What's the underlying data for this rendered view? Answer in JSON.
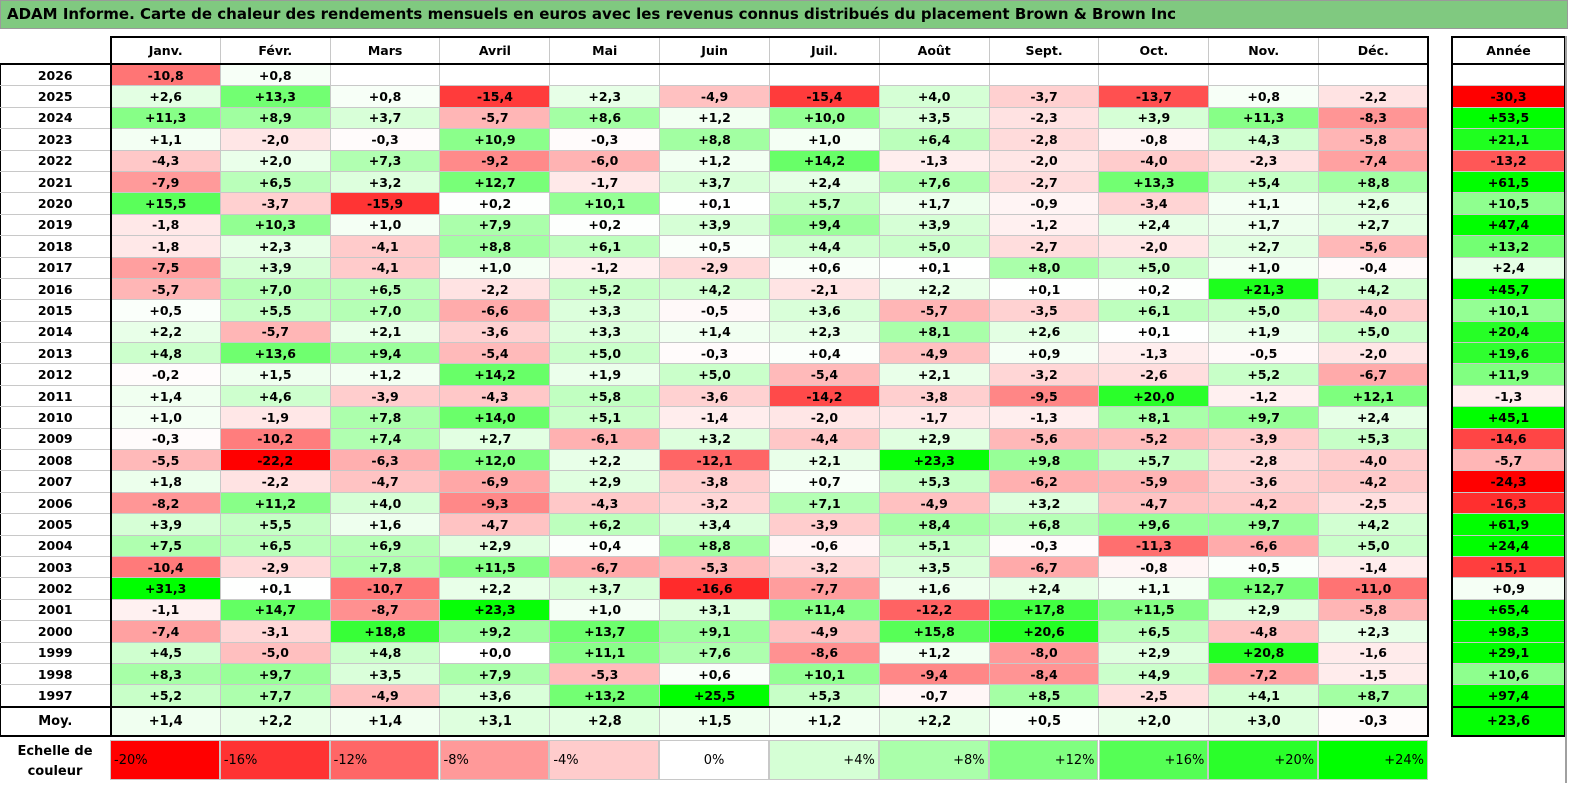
{
  "title": "ADAM Informe. Carte de chaleur des rendements mensuels en euros avec les revenus connus distribués du placement Brown & Brown Inc",
  "months": [
    "Janv.",
    "Févr.",
    "Mars",
    "Avril",
    "Mai",
    "Juin",
    "Juil.",
    "Août",
    "Sept.",
    "Oct.",
    "Nov.",
    "Déc."
  ],
  "annual_label": "Année",
  "rows": [
    {
      "year": "2026",
      "values": [
        "-10,8",
        "+0,8",
        null,
        null,
        null,
        null,
        null,
        null,
        null,
        null,
        null,
        null
      ],
      "annual": null
    },
    {
      "year": "2025",
      "values": [
        "+2,6",
        "+13,3",
        "+0,8",
        "-15,4",
        "+2,3",
        "-4,9",
        "-15,4",
        "+4,0",
        "-3,7",
        "-13,7",
        "+0,8",
        "-2,2"
      ],
      "annual": "-30,3"
    },
    {
      "year": "2024",
      "values": [
        "+11,3",
        "+8,9",
        "+3,7",
        "-5,7",
        "+8,6",
        "+1,2",
        "+10,0",
        "+3,5",
        "-2,3",
        "+3,9",
        "+11,3",
        "-8,3"
      ],
      "annual": "+53,5"
    },
    {
      "year": "2023",
      "values": [
        "+1,1",
        "-2,0",
        "-0,3",
        "+10,9",
        "-0,3",
        "+8,8",
        "+1,0",
        "+6,4",
        "-2,8",
        "-0,8",
        "+4,3",
        "-5,8"
      ],
      "annual": "+21,1"
    },
    {
      "year": "2022",
      "values": [
        "-4,3",
        "+2,0",
        "+7,3",
        "-9,2",
        "-6,0",
        "+1,2",
        "+14,2",
        "-1,3",
        "-2,0",
        "-4,0",
        "-2,3",
        "-7,4"
      ],
      "annual": "-13,2"
    },
    {
      "year": "2021",
      "values": [
        "-7,9",
        "+6,5",
        "+3,2",
        "+12,7",
        "-1,7",
        "+3,7",
        "+2,4",
        "+7,6",
        "-2,7",
        "+13,3",
        "+5,4",
        "+8,8"
      ],
      "annual": "+61,5"
    },
    {
      "year": "2020",
      "values": [
        "+15,5",
        "-3,7",
        "-15,9",
        "+0,2",
        "+10,1",
        "+0,1",
        "+5,7",
        "+1,7",
        "-0,9",
        "-3,4",
        "+1,1",
        "+2,6"
      ],
      "annual": "+10,5"
    },
    {
      "year": "2019",
      "values": [
        "-1,8",
        "+10,3",
        "+1,0",
        "+7,9",
        "+0,2",
        "+3,9",
        "+9,4",
        "+3,9",
        "-1,2",
        "+2,4",
        "+1,7",
        "+2,7"
      ],
      "annual": "+47,4"
    },
    {
      "year": "2018",
      "values": [
        "-1,8",
        "+2,3",
        "-4,1",
        "+8,8",
        "+6,1",
        "+0,5",
        "+4,4",
        "+5,0",
        "-2,7",
        "-2,0",
        "+2,7",
        "-5,6"
      ],
      "annual": "+13,2"
    },
    {
      "year": "2017",
      "values": [
        "-7,5",
        "+3,9",
        "-4,1",
        "+1,0",
        "-1,2",
        "-2,9",
        "+0,6",
        "+0,1",
        "+8,0",
        "+5,0",
        "+1,0",
        "-0,4"
      ],
      "annual": "+2,4"
    },
    {
      "year": "2016",
      "values": [
        "-5,7",
        "+7,0",
        "+6,5",
        "-2,2",
        "+5,2",
        "+4,2",
        "-2,1",
        "+2,2",
        "+0,1",
        "+0,2",
        "+21,3",
        "+4,2"
      ],
      "annual": "+45,7"
    },
    {
      "year": "2015",
      "values": [
        "+0,5",
        "+5,5",
        "+7,0",
        "-6,6",
        "+3,3",
        "-0,5",
        "+3,6",
        "-5,7",
        "-3,5",
        "+6,1",
        "+5,0",
        "-4,0"
      ],
      "annual": "+10,1"
    },
    {
      "year": "2014",
      "values": [
        "+2,2",
        "-5,7",
        "+2,1",
        "-3,6",
        "+3,3",
        "+1,4",
        "+2,3",
        "+8,1",
        "+2,6",
        "+0,1",
        "+1,9",
        "+5,0"
      ],
      "annual": "+20,4"
    },
    {
      "year": "2013",
      "values": [
        "+4,8",
        "+13,6",
        "+9,4",
        "-5,4",
        "+5,0",
        "-0,3",
        "+0,4",
        "-4,9",
        "+0,9",
        "-1,3",
        "-0,5",
        "-2,0"
      ],
      "annual": "+19,6"
    },
    {
      "year": "2012",
      "values": [
        "-0,2",
        "+1,5",
        "+1,2",
        "+14,2",
        "+1,9",
        "+5,0",
        "-5,4",
        "+2,1",
        "-3,2",
        "-2,6",
        "+5,2",
        "-6,7"
      ],
      "annual": "+11,9"
    },
    {
      "year": "2011",
      "values": [
        "+1,4",
        "+4,6",
        "-3,9",
        "-4,3",
        "+5,8",
        "-3,6",
        "-14,2",
        "-3,8",
        "-9,5",
        "+20,0",
        "-1,2",
        "+12,1"
      ],
      "annual": "-1,3"
    },
    {
      "year": "2010",
      "values": [
        "+1,0",
        "-1,9",
        "+7,8",
        "+14,0",
        "+5,1",
        "-1,4",
        "-2,0",
        "-1,7",
        "-1,3",
        "+8,1",
        "+9,7",
        "+2,4"
      ],
      "annual": "+45,1"
    },
    {
      "year": "2009",
      "values": [
        "-0,3",
        "-10,2",
        "+7,4",
        "+2,7",
        "-6,1",
        "+3,2",
        "-4,4",
        "+2,9",
        "-5,6",
        "-5,2",
        "-3,9",
        "+5,3"
      ],
      "annual": "-14,6"
    },
    {
      "year": "2008",
      "values": [
        "-5,5",
        "-22,2",
        "-6,3",
        "+12,0",
        "+2,2",
        "-12,1",
        "+2,1",
        "+23,3",
        "+9,8",
        "+5,7",
        "-2,8",
        "-4,0"
      ],
      "annual": "-5,7"
    },
    {
      "year": "2007",
      "values": [
        "+1,8",
        "-2,2",
        "-4,7",
        "-6,9",
        "+2,9",
        "-3,8",
        "+0,7",
        "+5,3",
        "-6,2",
        "-5,9",
        "-3,6",
        "-4,2"
      ],
      "annual": "-24,3"
    },
    {
      "year": "2006",
      "values": [
        "-8,2",
        "+11,2",
        "+4,0",
        "-9,3",
        "-4,3",
        "-3,2",
        "+7,1",
        "-4,9",
        "+3,2",
        "-4,7",
        "-4,2",
        "-2,5"
      ],
      "annual": "-16,3"
    },
    {
      "year": "2005",
      "values": [
        "+3,9",
        "+5,5",
        "+1,6",
        "-4,7",
        "+6,2",
        "+3,4",
        "-3,9",
        "+8,4",
        "+6,8",
        "+9,6",
        "+9,7",
        "+4,2"
      ],
      "annual": "+61,9"
    },
    {
      "year": "2004",
      "values": [
        "+7,5",
        "+6,5",
        "+6,9",
        "+2,9",
        "+0,4",
        "+8,8",
        "-0,6",
        "+5,1",
        "-0,3",
        "-11,3",
        "-6,6",
        "+5,0"
      ],
      "annual": "+24,4"
    },
    {
      "year": "2003",
      "values": [
        "-10,4",
        "-2,9",
        "+7,8",
        "+11,5",
        "-6,7",
        "-5,3",
        "-3,2",
        "+3,5",
        "-6,7",
        "-0,8",
        "+0,5",
        "-1,4"
      ],
      "annual": "-15,1"
    },
    {
      "year": "2002",
      "values": [
        "+31,3",
        "+0,1",
        "-10,7",
        "+2,2",
        "+3,7",
        "-16,6",
        "-7,7",
        "+1,6",
        "+2,4",
        "+1,1",
        "+12,7",
        "-11,0"
      ],
      "annual": "+0,9"
    },
    {
      "year": "2001",
      "values": [
        "-1,1",
        "+14,7",
        "-8,7",
        "+23,3",
        "+1,0",
        "+3,1",
        "+11,4",
        "-12,2",
        "+17,8",
        "+11,5",
        "+2,9",
        "-5,8"
      ],
      "annual": "+65,4"
    },
    {
      "year": "2000",
      "values": [
        "-7,4",
        "-3,1",
        "+18,8",
        "+9,2",
        "+13,7",
        "+9,1",
        "-4,9",
        "+15,8",
        "+20,6",
        "+6,5",
        "-4,8",
        "+2,3"
      ],
      "annual": "+98,3"
    },
    {
      "year": "1999",
      "values": [
        "+4,5",
        "-5,0",
        "+4,8",
        "+0,0",
        "+11,1",
        "+7,6",
        "-8,6",
        "+1,2",
        "-8,0",
        "+2,9",
        "+20,8",
        "-1,6"
      ],
      "annual": "+29,1"
    },
    {
      "year": "1998",
      "values": [
        "+8,3",
        "+9,7",
        "+3,5",
        "+7,9",
        "-5,3",
        "+0,6",
        "+10,1",
        "-9,4",
        "-8,4",
        "+4,9",
        "-7,2",
        "-1,5"
      ],
      "annual": "+10,6"
    },
    {
      "year": "1997",
      "values": [
        "+5,2",
        "+7,7",
        "-4,9",
        "+3,6",
        "+13,2",
        "+25,5",
        "+5,3",
        "-0,7",
        "+8,5",
        "-2,5",
        "+4,1",
        "+8,7"
      ],
      "annual": "+97,4"
    }
  ],
  "average": {
    "label": "Moy.",
    "values": [
      "+1,4",
      "+2,2",
      "+1,4",
      "+3,1",
      "+2,8",
      "+1,5",
      "+1,2",
      "+2,2",
      "+0,5",
      "+2,0",
      "+3,0",
      "-0,3"
    ],
    "annual": "+23,6"
  },
  "legend": {
    "label_line1": "Echelle de",
    "label_line2": "couleur",
    "steps": [
      "-20%",
      "-16%",
      "-12%",
      "-8%",
      "-4%",
      "0%",
      "+4%",
      "+8%",
      "+12%",
      "+16%",
      "+20%",
      "+24%"
    ]
  },
  "chart_data": {
    "type": "heatmap",
    "title": "ADAM Informe. Carte de chaleur des rendements mensuels en euros avec les revenus connus distribués du placement Brown & Brown Inc",
    "x_categories": [
      "Janv.",
      "Févr.",
      "Mars",
      "Avril",
      "Mai",
      "Juin",
      "Juil.",
      "Août",
      "Sept.",
      "Oct.",
      "Nov.",
      "Déc.",
      "Année"
    ],
    "color_scale": {
      "min": -20,
      "mid": 0,
      "max": 24,
      "min_color": "#ff0000",
      "mid_color": "#ffffff",
      "max_color": "#00ff00"
    },
    "title_bar_color": "#80c980"
  }
}
